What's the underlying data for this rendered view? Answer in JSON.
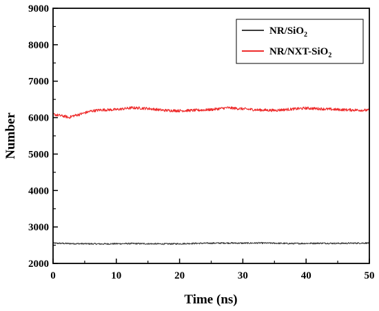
{
  "chart_data": {
    "type": "line",
    "xlabel": "Time (ns)",
    "ylabel": "Number",
    "xlim": [
      0,
      50
    ],
    "ylim": [
      2000,
      9000
    ],
    "x_ticks": [
      "0",
      "10",
      "20",
      "30",
      "40",
      "50"
    ],
    "y_ticks": [
      "2000",
      "3000",
      "4000",
      "5000",
      "6000",
      "7000",
      "8000",
      "9000"
    ],
    "grid": false,
    "legend_position": "top-right",
    "series": [
      {
        "name_main": "NR/SiO",
        "name_sub": "2",
        "color": "#3c3c3c",
        "x": [
          0,
          2.5,
          5,
          7.5,
          10,
          12.5,
          15,
          17.5,
          20,
          22.5,
          25,
          27.5,
          30,
          32.5,
          35,
          37.5,
          40,
          42.5,
          45,
          47.5,
          50
        ],
        "y": [
          2555,
          2545,
          2540,
          2535,
          2540,
          2545,
          2540,
          2535,
          2540,
          2550,
          2555,
          2560,
          2555,
          2560,
          2555,
          2545,
          2550,
          2555,
          2550,
          2555,
          2560
        ],
        "noise": 20
      },
      {
        "name_main": "NR/NXT-SiO",
        "name_sub": "2",
        "color": "#ee2a2a",
        "x": [
          0,
          1,
          2,
          2.5,
          3,
          4,
          5,
          6,
          7.5,
          10,
          12.5,
          15,
          17.5,
          20,
          22.5,
          25,
          27.5,
          30,
          32.5,
          35,
          37.5,
          40,
          42.5,
          45,
          47.5,
          50
        ],
        "y": [
          6090,
          6060,
          6030,
          6000,
          6040,
          6080,
          6130,
          6180,
          6210,
          6220,
          6270,
          6250,
          6200,
          6190,
          6200,
          6220,
          6270,
          6240,
          6210,
          6200,
          6230,
          6260,
          6240,
          6220,
          6210,
          6200
        ],
        "noise": 38
      }
    ]
  }
}
